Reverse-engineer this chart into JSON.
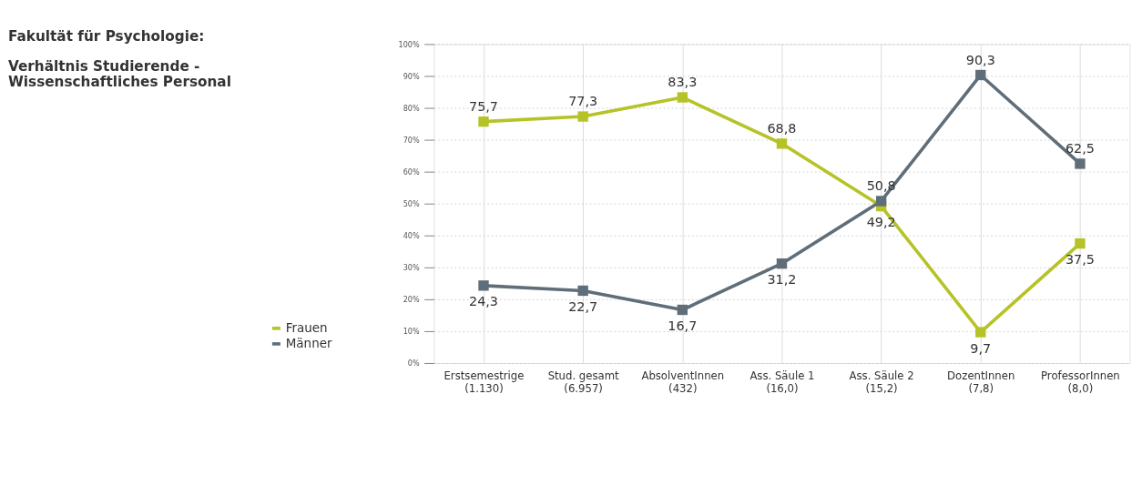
{
  "chart_data": {
    "type": "line",
    "title": "Fakultät für Psychologie:",
    "subtitle": "Verhältnis Studierende -\nWissenschaftliches Personal",
    "categories": [
      "Erstsemestrige\n(1.130)",
      "Stud. gesamt\n(6.957)",
      "AbsolventInnen\n(432)",
      "Ass. Säule 1\n(16,0)",
      "Ass. Säule 2\n(15,2)",
      "DozentInnen\n(7,8)",
      "ProfessorInnen\n(8,0)"
    ],
    "series": [
      {
        "name": "Frauen",
        "color": "#b5c327",
        "values": [
          75.7,
          77.3,
          83.3,
          68.8,
          49.2,
          9.7,
          37.5
        ],
        "value_labels": [
          "75,7",
          "77,3",
          "83,3",
          "68,8",
          "49,2",
          "9,7",
          "37,5"
        ]
      },
      {
        "name": "Männer",
        "color": "#5f6e78",
        "values": [
          24.3,
          22.7,
          16.7,
          31.2,
          50.8,
          90.3,
          62.5
        ],
        "value_labels": [
          "24,3",
          "22,7",
          "16,7",
          "31,2",
          "50,8",
          "90,3",
          "62,5"
        ]
      }
    ],
    "ylim": [
      0,
      100
    ],
    "yticks": [
      {
        "value": 0,
        "label": "0%"
      },
      {
        "value": 10,
        "label": "10%"
      },
      {
        "value": 20,
        "label": "20%"
      },
      {
        "value": 30,
        "label": "30%"
      },
      {
        "value": 40,
        "label": "40%"
      },
      {
        "value": 50,
        "label": "50%"
      },
      {
        "value": 60,
        "label": "60%"
      },
      {
        "value": 70,
        "label": "70%"
      },
      {
        "value": 80,
        "label": "80%"
      },
      {
        "value": 90,
        "label": "90%"
      },
      {
        "value": 100,
        "label": "100%"
      }
    ],
    "grid": true,
    "legend": "bottom left",
    "marker": "square",
    "line_style": "solid"
  }
}
